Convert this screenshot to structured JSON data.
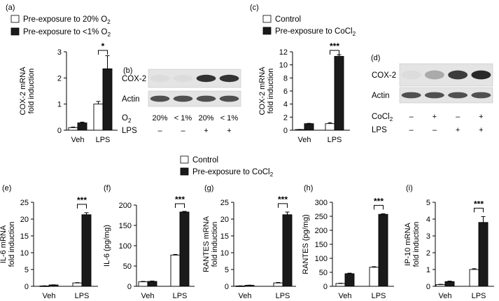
{
  "legends": {
    "a": [
      {
        "label": "Pre-exposure to 20% O",
        "sub": "2",
        "fill": "#ffffff"
      },
      {
        "label": "Pre-exposure to <1% O",
        "sub": "2",
        "fill": "#1a1a1a"
      }
    ],
    "c": [
      {
        "label": "Control",
        "sub": "",
        "fill": "#ffffff"
      },
      {
        "label": "Pre-exposure to CoCl",
        "sub": "2",
        "fill": "#1a1a1a"
      }
    ],
    "bottom": [
      {
        "label": "Control",
        "sub": "",
        "fill": "#ffffff"
      },
      {
        "label": "Pre-exposure to CoCl",
        "sub": "2",
        "fill": "#1a1a1a"
      }
    ]
  },
  "blots": {
    "b": {
      "panel_label": "(b)",
      "rows": [
        "COX-2",
        "Actin"
      ],
      "cond1_label": "O",
      "cond1_sub": "2",
      "cond1_values": [
        "20%",
        "< 1%",
        "20%",
        "< 1%"
      ],
      "cond2_label": "LPS",
      "cond2_values": [
        "–",
        "–",
        "+",
        "+"
      ]
    },
    "d": {
      "panel_label": "(d)",
      "rows": [
        "COX-2",
        "Actin"
      ],
      "cond1_label": "CoCl",
      "cond1_sub": "2",
      "cond1_values": [
        "–",
        "+",
        "–",
        "+"
      ],
      "cond2_label": "LPS",
      "cond2_values": [
        "–",
        "–",
        "+",
        "+"
      ]
    }
  },
  "chart_data": [
    {
      "panel": "(a)",
      "type": "bar",
      "ylabel": [
        "COX-2 mRNA",
        "fold induction"
      ],
      "categories": [
        "Veh",
        "LPS"
      ],
      "ylim": [
        0,
        3
      ],
      "yticks": [
        0,
        1,
        2,
        3
      ],
      "series": [
        {
          "values": [
            0.1,
            1.0
          ],
          "errors": [
            0.02,
            0.1
          ],
          "color": "#ffffff"
        },
        {
          "values": [
            0.28,
            2.35
          ],
          "errors": [
            0.03,
            0.5
          ],
          "color": "#1a1a1a"
        }
      ],
      "significance": "*"
    },
    {
      "panel": "(c)",
      "type": "bar",
      "ylabel": [
        "COX-2 mRNA",
        "fold induction"
      ],
      "categories": [
        "Veh",
        "LPS"
      ],
      "ylim": [
        0,
        12
      ],
      "yticks": [
        0,
        2,
        4,
        6,
        8,
        10,
        12
      ],
      "series": [
        {
          "values": [
            0.1,
            1.0
          ],
          "errors": [
            0.02,
            0.15
          ],
          "color": "#ffffff"
        },
        {
          "values": [
            1.0,
            11.3
          ],
          "errors": [
            0.05,
            0.25
          ],
          "color": "#1a1a1a"
        }
      ],
      "significance": "***"
    },
    {
      "panel": "(e)",
      "type": "bar",
      "ylabel": [
        "IL-6  mRNA",
        "fold induction"
      ],
      "categories": [
        "Veh",
        "LPS"
      ],
      "ylim": [
        0,
        25
      ],
      "yticks": [
        0,
        5,
        10,
        15,
        20,
        25
      ],
      "series": [
        {
          "values": [
            0.1,
            1.0
          ],
          "errors": [
            0.05,
            0.1
          ],
          "color": "#ffffff"
        },
        {
          "values": [
            0.4,
            21.3
          ],
          "errors": [
            0.05,
            0.6
          ],
          "color": "#1a1a1a"
        }
      ],
      "significance": "***"
    },
    {
      "panel": "(f)",
      "type": "bar",
      "ylabel": [
        "IL-6 (pg/mg)"
      ],
      "categories": [
        "Veh",
        "LPS"
      ],
      "ylim": [
        0,
        200
      ],
      "yticks": [
        0,
        50,
        100,
        150,
        200
      ],
      "series": [
        {
          "values": [
            11,
            77
          ],
          "errors": [
            1,
            1.5
          ],
          "color": "#ffffff"
        },
        {
          "values": [
            12,
            183
          ],
          "errors": [
            1,
            1.5
          ],
          "color": "#1a1a1a"
        }
      ],
      "significance": "***"
    },
    {
      "panel": "(g)",
      "type": "bar",
      "ylabel": [
        "RANTES mRNA",
        "fold induction"
      ],
      "categories": [
        "Veh",
        "LPS"
      ],
      "ylim": [
        0,
        25
      ],
      "yticks": [
        0,
        5,
        10,
        15,
        20,
        25
      ],
      "series": [
        {
          "values": [
            0.1,
            1.0
          ],
          "errors": [
            0.05,
            0.15
          ],
          "color": "#ffffff"
        },
        {
          "values": [
            0.3,
            21.3
          ],
          "errors": [
            0.05,
            0.8
          ],
          "color": "#1a1a1a"
        }
      ],
      "significance": "***"
    },
    {
      "panel": "(h)",
      "type": "bar",
      "ylabel": [
        "RANTES  (pg/mg)"
      ],
      "categories": [
        "Veh",
        "LPS"
      ],
      "ylim": [
        0,
        300
      ],
      "yticks": [
        0,
        50,
        100,
        150,
        200,
        250,
        300
      ],
      "series": [
        {
          "values": [
            10,
            68
          ],
          "errors": [
            1,
            2
          ],
          "color": "#ffffff"
        },
        {
          "values": [
            45,
            257
          ],
          "errors": [
            2,
            2
          ],
          "color": "#1a1a1a"
        }
      ],
      "significance": "***"
    },
    {
      "panel": "(i)",
      "type": "bar",
      "ylabel": [
        "IP-10 mRNA",
        "fold induction"
      ],
      "categories": [
        "Veh",
        "LPS"
      ],
      "ylim": [
        0,
        5
      ],
      "yticks": [
        0,
        1,
        2,
        3,
        4,
        5
      ],
      "series": [
        {
          "values": [
            0.1,
            1.0
          ],
          "errors": [
            0.02,
            0.05
          ],
          "color": "#ffffff"
        },
        {
          "values": [
            0.28,
            3.8
          ],
          "errors": [
            0.03,
            0.35
          ],
          "color": "#1a1a1a"
        }
      ],
      "significance": "***"
    }
  ]
}
